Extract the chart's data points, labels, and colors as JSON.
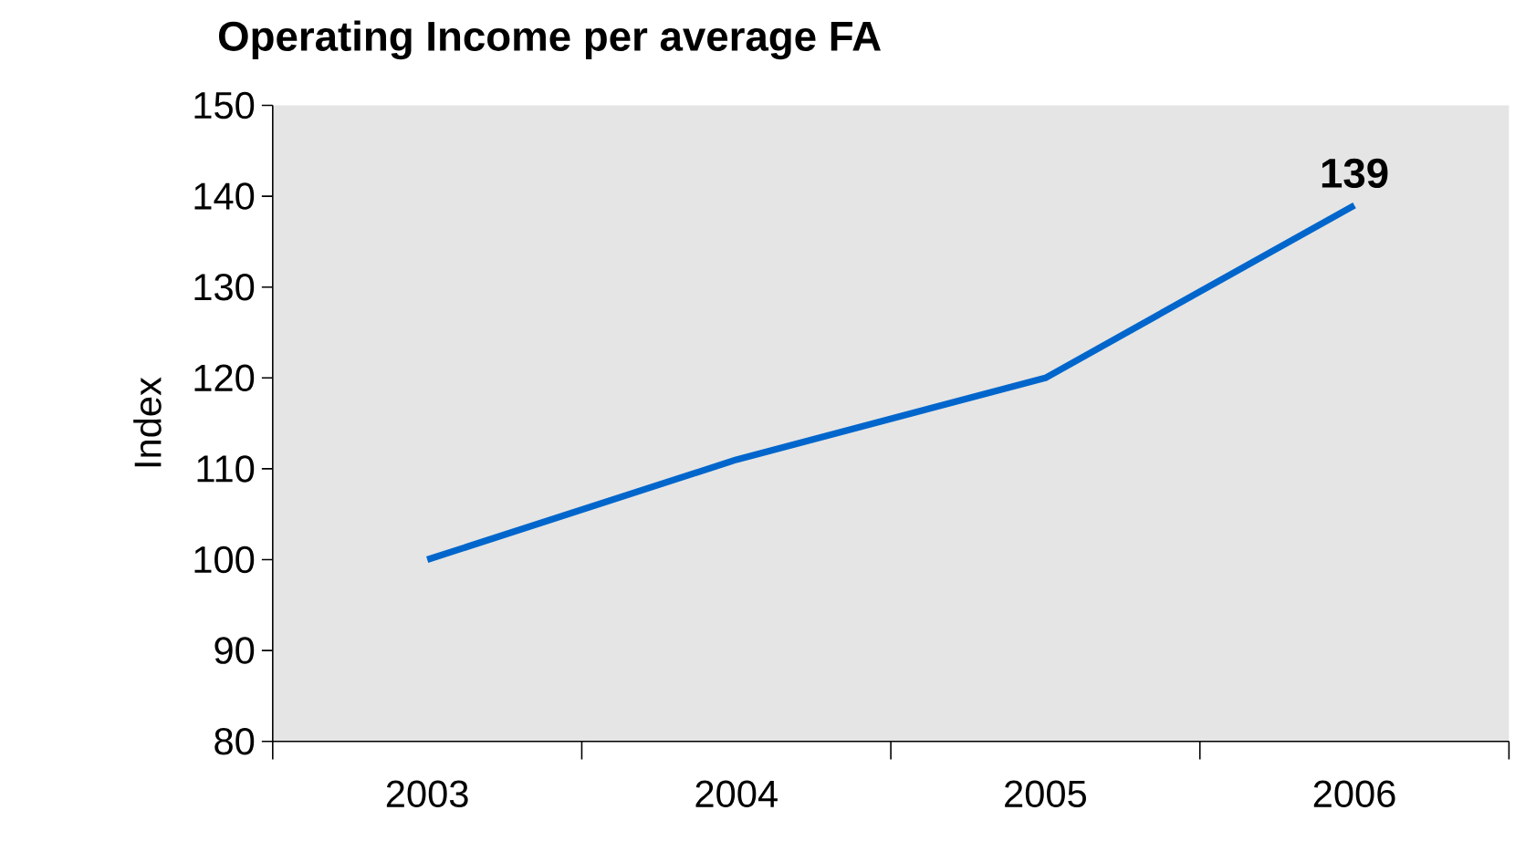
{
  "chart_data": {
    "type": "line",
    "title": "Operating Income per average FA",
    "ylabel": "Index",
    "categories": [
      "2003",
      "2004",
      "2005",
      "2006"
    ],
    "series": [
      {
        "color": "#0066cc",
        "values": [
          100,
          111,
          120,
          139
        ],
        "value_labels": [
          null,
          null,
          null,
          "139"
        ]
      }
    ],
    "ylim": [
      80,
      150
    ],
    "yticks": [
      80,
      90,
      100,
      110,
      120,
      130,
      140,
      150
    ],
    "marker": "none",
    "line_style": "solid"
  }
}
